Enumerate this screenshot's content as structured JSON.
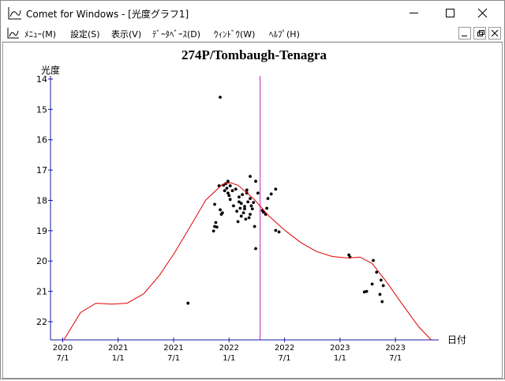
{
  "window": {
    "title": "Comet for Windows - [光度グラフ1]"
  },
  "menu": [
    "ﾒﾆｭｰ(M)",
    "設定(S)",
    "表示(V)",
    "ﾃﾞｰﾀﾍﾞｰｽ(D)",
    "ｳｨﾝﾄﾞｳ(W)",
    "ﾍﾙﾌﾟ(H)"
  ],
  "chart_data": {
    "type": "scatter",
    "title": "274P/Tombaugh-Tenagra",
    "y_label": "光度",
    "x_label": "日付",
    "y_inverted": true,
    "axis_color": "#1a1aa0",
    "xlim": [
      2020.39,
      2023.89
    ],
    "ylim": [
      14,
      22.6
    ],
    "yticks": [
      14,
      15,
      16,
      17,
      18,
      19,
      20,
      21,
      22
    ],
    "xticks": [
      {
        "value": 2020.5,
        "label": [
          "2020",
          "7/1"
        ]
      },
      {
        "value": 2021.0,
        "label": [
          "2021",
          "1/1"
        ]
      },
      {
        "value": 2021.5,
        "label": [
          "2021",
          "7/1"
        ]
      },
      {
        "value": 2022.0,
        "label": [
          "2022",
          "1/1"
        ]
      },
      {
        "value": 2022.5,
        "label": [
          "2022",
          "7/1"
        ]
      },
      {
        "value": 2023.0,
        "label": [
          "2023",
          "1/1"
        ]
      },
      {
        "value": 2023.5,
        "label": [
          "2023",
          "7/1"
        ]
      }
    ],
    "vlines": [
      2022.28
    ],
    "vline_color": "#c020c0",
    "series": [
      {
        "type": "scatter",
        "color": "#000000",
        "x": [
          2021.92,
          2021.63,
          2021.86,
          2021.87,
          2021.88,
          2021.89,
          2021.87,
          2021.91,
          2021.92,
          2021.93,
          2021.94,
          2021.95,
          2021.96,
          2021.97,
          2021.98,
          2021.99,
          2021.99,
          2022.0,
          2022.01,
          2022.01,
          2022.03,
          2022.04,
          2022.06,
          2022.07,
          2022.08,
          2022.09,
          2022.09,
          2022.1,
          2022.11,
          2022.11,
          2022.12,
          2022.13,
          2022.14,
          2022.14,
          2022.15,
          2022.16,
          2022.16,
          2022.17,
          2022.18,
          2022.19,
          2022.19,
          2022.2,
          2022.21,
          2022.22,
          2022.23,
          2022.24,
          2022.26,
          2022.19,
          2022.24,
          2022.34,
          2022.33,
          2022.35,
          2022.38,
          2022.42,
          2022.42,
          2022.45,
          2022.31,
          2022.3,
          2023.08,
          2023.09,
          2023.22,
          2023.24,
          2023.29,
          2023.3,
          2023.33,
          2023.36,
          2023.37,
          2023.39,
          2023.38
        ],
        "values": [
          14.6,
          21.39,
          19.01,
          18.86,
          18.73,
          18.88,
          18.13,
          17.52,
          18.31,
          18.46,
          18.41,
          17.5,
          17.68,
          17.45,
          17.6,
          17.37,
          17.76,
          17.84,
          17.52,
          17.97,
          17.68,
          18.18,
          17.63,
          18.36,
          18.7,
          18.05,
          17.89,
          18.26,
          18.1,
          18.52,
          17.81,
          18.41,
          18.2,
          18.28,
          18.62,
          17.76,
          17.66,
          18.05,
          18.57,
          17.94,
          18.46,
          18.18,
          18.28,
          18.07,
          18.86,
          17.37,
          17.76,
          17.21,
          19.59,
          18.26,
          18.46,
          17.94,
          17.79,
          17.63,
          18.99,
          19.04,
          18.39,
          18.33,
          19.8,
          19.87,
          21.02,
          21.0,
          20.76,
          19.98,
          20.37,
          21.1,
          20.63,
          20.81,
          21.34
        ]
      },
      {
        "type": "line",
        "color": "#e00000",
        "x": [
          2020.51,
          2020.66,
          2020.8,
          2020.94,
          2021.08,
          2021.23,
          2021.37,
          2021.51,
          2021.65,
          2021.79,
          2021.94,
          2022.01,
          2022.08,
          2022.22,
          2022.36,
          2022.51,
          2022.65,
          2022.79,
          2022.93,
          2023.07,
          2023.18,
          2023.29,
          2023.43,
          2023.57,
          2023.71,
          2023.82
        ],
        "values": [
          22.6,
          21.7,
          21.39,
          21.42,
          21.39,
          21.08,
          20.48,
          19.72,
          18.86,
          17.99,
          17.47,
          17.42,
          17.5,
          17.94,
          18.52,
          19.01,
          19.4,
          19.69,
          19.85,
          19.9,
          19.87,
          20.08,
          20.74,
          21.47,
          22.17,
          22.59
        ]
      }
    ]
  }
}
